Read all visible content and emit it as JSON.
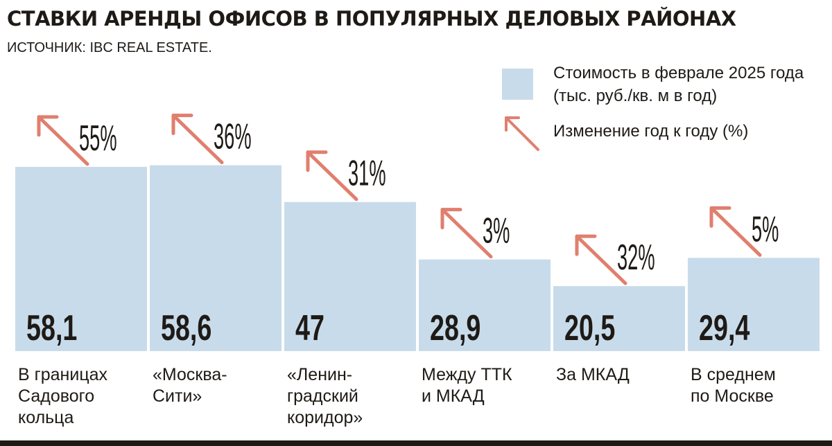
{
  "title": "СТАВКИ АРЕНДЫ ОФИСОВ В ПОПУЛЯРНЫХ ДЕЛОВЫХ РАЙОНАХ",
  "source": "ИСТОЧНИК: IBC REAL ESTATE.",
  "legend": {
    "bar_line1": "Стоимость в феврале 2025 года",
    "bar_line2": "(тыс. руб./кв. м в год)",
    "arrow_label": "Изменение год к году (%)"
  },
  "colors": {
    "bar": "#c8dbea",
    "arrow": "#e07f6e",
    "text": "#1e1a16"
  },
  "chart_data": {
    "type": "bar",
    "title": "СТАВКИ АРЕНДЫ ОФИСОВ В ПОПУЛЯРНЫХ ДЕЛОВЫХ РАЙОНАХ",
    "categories": [
      "В границах\nСадового\nкольца",
      "«Москва-\nСити»",
      "«Ленин-\nградский\nкоридор»",
      "Между ТТК\nи МКАД",
      "За МКАД",
      "В среднем\nпо Москве"
    ],
    "values": [
      58.1,
      58.6,
      47,
      28.9,
      20.5,
      29.4
    ],
    "value_labels": [
      "58,1",
      "58,6",
      "47",
      "28,9",
      "20,5",
      "29,4"
    ],
    "yoy_change_pct": [
      55,
      36,
      31,
      3,
      32,
      5
    ],
    "yoy_labels": [
      "55%",
      "36%",
      "31%",
      "3%",
      "32%",
      "5%"
    ],
    "ylabel": "тыс. руб./кв. м в год",
    "ylim": [
      0,
      70
    ]
  }
}
